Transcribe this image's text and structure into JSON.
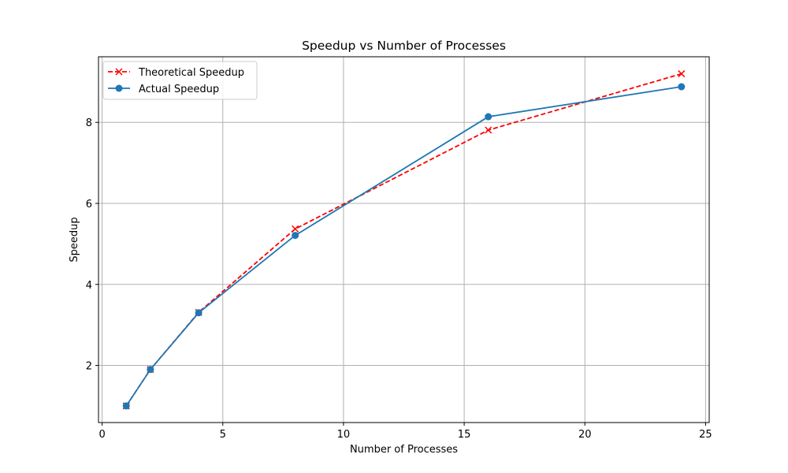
{
  "chart_data": {
    "type": "line",
    "title": "Speedup vs Number of Processes",
    "xlabel": "Number of Processes",
    "ylabel": "Speedup",
    "xlim": [
      -0.15,
      25.15
    ],
    "ylim": [
      0.59,
      9.62
    ],
    "xticks": [
      0,
      5,
      10,
      15,
      20,
      25
    ],
    "yticks": [
      2,
      4,
      6,
      8
    ],
    "grid": true,
    "legend_position": "top-left",
    "x": [
      1,
      2,
      4,
      8,
      16,
      24
    ],
    "series": [
      {
        "name": "Theoretical Speedup",
        "values": [
          1.0,
          1.9,
          3.31,
          5.37,
          7.81,
          9.2
        ],
        "color": "#ff0000",
        "line_style": "dashed",
        "marker": "x"
      },
      {
        "name": "Actual Speedup",
        "values": [
          1.0,
          1.9,
          3.3,
          5.21,
          8.14,
          8.88
        ],
        "color": "#1f77b4",
        "line_style": "solid",
        "marker": "circle"
      }
    ]
  }
}
